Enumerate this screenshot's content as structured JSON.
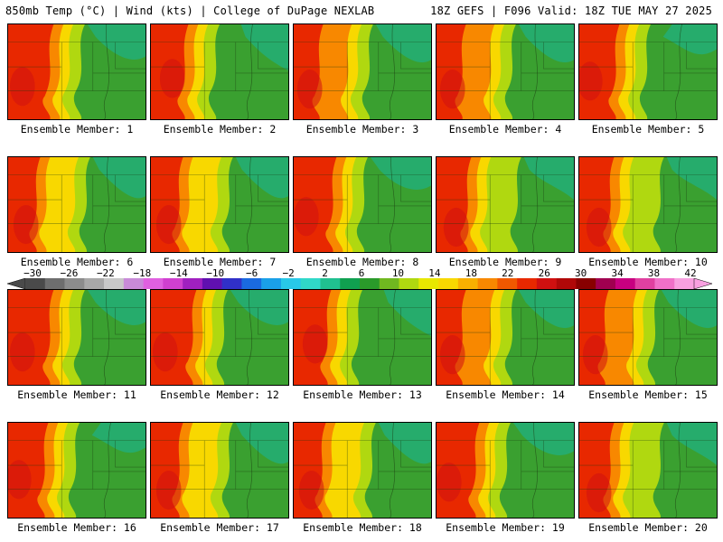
{
  "header": {
    "left": "850mb Temp (°C) | Wind (kts) | College of DuPage NEXLAB",
    "right": "18Z GEFS | F096 Valid: 18Z TUE MAY 27 2025"
  },
  "colorbar": {
    "ticks": [
      "-30",
      "-26",
      "-22",
      "-18",
      "-14",
      "-10",
      "-6",
      "-2",
      "2",
      "6",
      "10",
      "14",
      "18",
      "22",
      "26",
      "30",
      "34",
      "38",
      "42"
    ],
    "colors": [
      "#4a4a4a",
      "#6e6e6e",
      "#8c8c8c",
      "#a8a8a8",
      "#c8c8c8",
      "#c88ad8",
      "#e060e0",
      "#d040d0",
      "#a020c0",
      "#6010b0",
      "#3030c8",
      "#1a6ae0",
      "#1aa0e8",
      "#28c8e8",
      "#30d8c8",
      "#20c090",
      "#10a050",
      "#2a9a2a",
      "#70b820",
      "#b0d810",
      "#e8e800",
      "#f8d800",
      "#f8b000",
      "#f88800",
      "#f05800",
      "#e82800",
      "#d01010",
      "#b00808",
      "#880000",
      "#a00050",
      "#c80080",
      "#e040a0",
      "#f070c8",
      "#f8a0e0"
    ]
  },
  "panels": [
    {
      "label": "Ensemble Member: 1"
    },
    {
      "label": "Ensemble Member: 2"
    },
    {
      "label": "Ensemble Member: 3"
    },
    {
      "label": "Ensemble Member: 4"
    },
    {
      "label": "Ensemble Member: 5"
    },
    {
      "label": "Ensemble Member: 6"
    },
    {
      "label": "Ensemble Member: 7"
    },
    {
      "label": "Ensemble Member: 8"
    },
    {
      "label": "Ensemble Member: 9"
    },
    {
      "label": "Ensemble Member: 10"
    },
    {
      "label": "Ensemble Member: 11"
    },
    {
      "label": "Ensemble Member: 12"
    },
    {
      "label": "Ensemble Member: 13"
    },
    {
      "label": "Ensemble Member: 14"
    },
    {
      "label": "Ensemble Member: 15"
    },
    {
      "label": "Ensemble Member: 16"
    },
    {
      "label": "Ensemble Member: 17"
    },
    {
      "label": "Ensemble Member: 18"
    },
    {
      "label": "Ensemble Member: 19"
    },
    {
      "label": "Ensemble Member: 20"
    }
  ],
  "field_colors": {
    "hot": "#e82800",
    "warm": "#f88800",
    "mild": "#f8d800",
    "cool": "#b0d810",
    "green": "#3aa030",
    "cold": "#20b080"
  }
}
